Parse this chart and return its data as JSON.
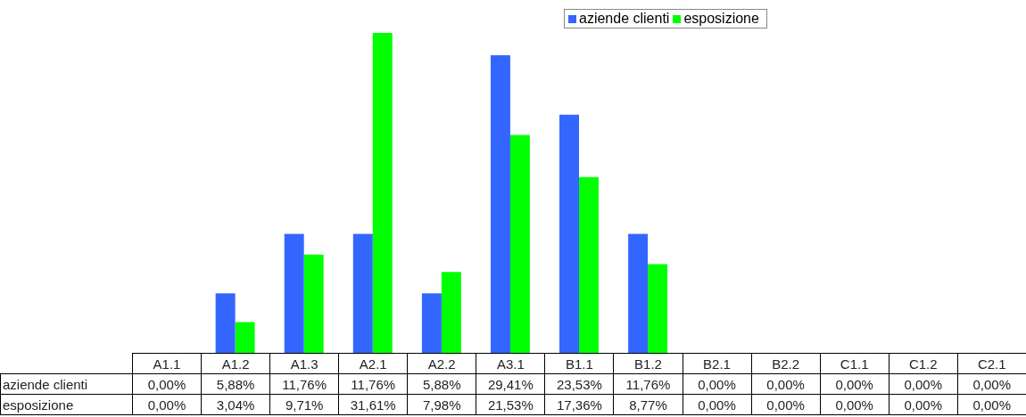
{
  "chart_data": {
    "type": "bar",
    "categories": [
      "A1.1",
      "A1.2",
      "A1.3",
      "A2.1",
      "A2.2",
      "A3.1",
      "B1.1",
      "B1.2",
      "B2.1",
      "B2.2",
      "C1.1",
      "C1.2",
      "C2.1"
    ],
    "series": [
      {
        "name": "aziende clienti",
        "color": "#3366ff",
        "values": [
          0,
          5.88,
          11.76,
          11.76,
          5.88,
          29.41,
          23.53,
          11.76,
          0,
          0,
          0,
          0,
          0
        ],
        "value_labels": [
          "0,00%",
          "5,88%",
          "11,76%",
          "11,76%",
          "5,88%",
          "29,41%",
          "23,53%",
          "11,76%",
          "0,00%",
          "0,00%",
          "0,00%",
          "0,00%",
          "0,00%"
        ]
      },
      {
        "name": "esposizione",
        "color": "#00ff00",
        "values": [
          0,
          3.04,
          9.71,
          31.61,
          7.98,
          21.53,
          17.36,
          8.77,
          0,
          0,
          0,
          0,
          0
        ],
        "value_labels": [
          "0,00%",
          "3,04%",
          "9,71%",
          "31,61%",
          "7,98%",
          "21,53%",
          "17,36%",
          "8,77%",
          "0,00%",
          "0,00%",
          "0,00%",
          "0,00%",
          "0,00%"
        ]
      }
    ],
    "legend": "top",
    "grid": false
  }
}
